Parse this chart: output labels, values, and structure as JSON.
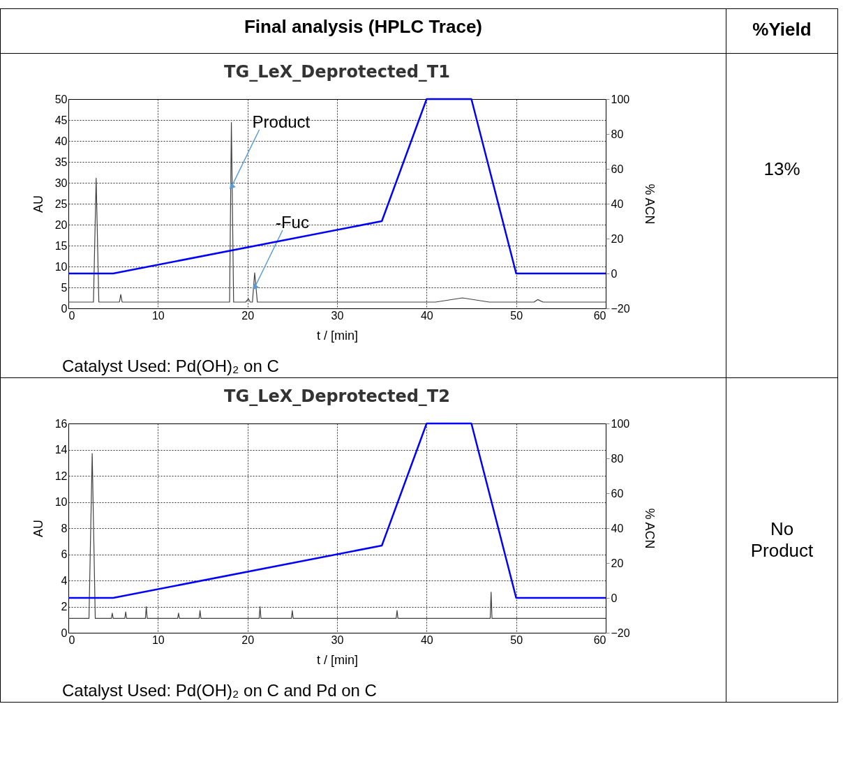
{
  "chart_data": [
    {
      "type": "line",
      "title": "TG_LeX_Deprotected_T1",
      "xlabel": "t / [min]",
      "ylabel": "AU",
      "y2label": "% ACN",
      "xlim": [
        0,
        60
      ],
      "xticks": [
        0,
        10,
        20,
        30,
        40,
        50,
        60
      ],
      "ylim": [
        0,
        50
      ],
      "yticks": [
        0,
        5,
        10,
        15,
        20,
        25,
        30,
        35,
        40,
        45,
        50
      ],
      "y2lim": [
        -20,
        100
      ],
      "y2ticks": [
        -20,
        0,
        20,
        40,
        60,
        80,
        100
      ],
      "grid": true,
      "series": [
        {
          "color": "#404040",
          "x": [
            0,
            2.8,
            3.1,
            3.4,
            5.7,
            5.85,
            6.0,
            18.0,
            18.2,
            18.45,
            19.8,
            20.1,
            20.3,
            20.55,
            20.8,
            21.1,
            41,
            44,
            47,
            52,
            52.4,
            53,
            60
          ],
          "values": [
            1.5,
            1.5,
            31.1,
            1.5,
            1.5,
            3.3,
            1.5,
            1.5,
            44.4,
            1.5,
            1.5,
            2.3,
            1.5,
            1.5,
            8.5,
            1.5,
            1.5,
            2.5,
            1.5,
            1.5,
            2.1,
            1.5,
            1.5
          ]
        },
        {
          "color": "#0000ff",
          "axis": "y2",
          "x": [
            0,
            5,
            35,
            40,
            45,
            50,
            60
          ],
          "values": [
            0,
            0,
            30,
            100,
            100,
            0,
            0
          ]
        }
      ],
      "annotations": [
        "Final analysis (HPLC Trace)",
        "%Yield",
        "13%",
        "Catalyst Used: Pd(OH)₂ on C",
        {
          "text": "Product",
          "x": 18.2,
          "y": 29
        },
        {
          "text": "-Fuc",
          "x": 20.8,
          "y": 5
        }
      ]
    },
    {
      "type": "line",
      "title": "TG_LeX_Deprotected_T2",
      "xlabel": "t / [min]",
      "ylabel": "AU",
      "y2label": "% ACN",
      "xlim": [
        0,
        60
      ],
      "xticks": [
        0,
        10,
        20,
        30,
        40,
        50,
        60
      ],
      "ylim": [
        0,
        16
      ],
      "yticks": [
        0,
        2,
        4,
        6,
        8,
        10,
        12,
        14,
        16
      ],
      "y2lim": [
        -20,
        100
      ],
      "y2ticks": [
        -20,
        0,
        20,
        40,
        60,
        80,
        100
      ],
      "grid": true,
      "series": [
        {
          "color": "#404040",
          "x": [
            0,
            2.3,
            2.66,
            3.0,
            4.8,
            4.9,
            5.0,
            6.3,
            6.4,
            6.5,
            8.6,
            8.7,
            8.8,
            12.2,
            12.3,
            12.4,
            14.6,
            14.7,
            14.8,
            21.3,
            21.4,
            21.5,
            24.9,
            25.0,
            25.1,
            36.6,
            36.7,
            36.8,
            47.1,
            47.2,
            47.3,
            60
          ],
          "values": [
            1.1,
            1.1,
            13.7,
            1.1,
            1.1,
            1.5,
            1.1,
            1.1,
            1.6,
            1.1,
            1.1,
            2.0,
            1.1,
            1.1,
            1.5,
            1.1,
            1.1,
            1.7,
            1.1,
            1.1,
            2.0,
            1.1,
            1.1,
            1.7,
            1.1,
            1.1,
            1.7,
            1.1,
            1.1,
            3.1,
            1.1,
            1.1
          ]
        },
        {
          "color": "#0000ff",
          "axis": "y2",
          "x": [
            0,
            5,
            35,
            40,
            45,
            50,
            60
          ],
          "values": [
            0,
            0,
            30,
            100,
            100,
            0,
            0
          ]
        }
      ],
      "annotations": [
        "No Product",
        "Catalyst Used: Pd(OH)₂ on C and Pd on C"
      ]
    }
  ]
}
